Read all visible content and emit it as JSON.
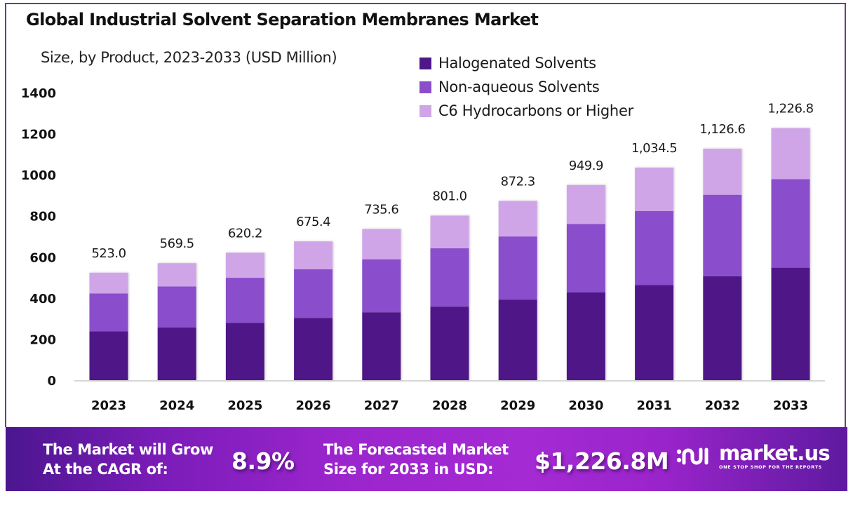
{
  "header": {
    "title": "Global Industrial Solvent Separation Membranes Market",
    "subtitle": "Size, by Product, 2023-2033 (USD Million)"
  },
  "legend": [
    {
      "label": "Halogenated Solvents",
      "color": "#4f1787"
    },
    {
      "label": "Non-aqueous Solvents",
      "color": "#8a4ecb"
    },
    {
      "label": "C6 Hydrocarbons or Higher",
      "color": "#d0a5e8"
    }
  ],
  "chart_data": {
    "type": "bar",
    "stacked": true,
    "title": "Global Industrial Solvent Separation Membranes Market",
    "subtitle": "Size, by Product, 2023-2033 (USD Million)",
    "xlabel": "",
    "ylabel": "",
    "ylim": [
      0,
      1400
    ],
    "yticks": [
      0,
      200,
      400,
      600,
      800,
      1000,
      1200,
      1400
    ],
    "grid": false,
    "legend_position": "top-right",
    "categories": [
      "2023",
      "2024",
      "2025",
      "2026",
      "2027",
      "2028",
      "2029",
      "2030",
      "2031",
      "2032",
      "2033"
    ],
    "series": [
      {
        "name": "Halogenated Solvents",
        "color": "#4f1787",
        "values": [
          237.2,
          256.4,
          279.1,
          303.2,
          330.5,
          357.9,
          392.2,
          427.1,
          463.0,
          505.8,
          547.6
        ]
      },
      {
        "name": "Non-aqueous Solvents",
        "color": "#8a4ecb",
        "values": [
          184.5,
          199.6,
          219.3,
          236.3,
          258.0,
          283.9,
          307.3,
          333.4,
          360.6,
          396.7,
          431.1
        ]
      },
      {
        "name": "C6 Hydrocarbons or Higher",
        "color": "#d0a5e8",
        "values": [
          101.3,
          113.5,
          121.8,
          135.9,
          147.1,
          159.2,
          172.8,
          189.4,
          210.9,
          224.1,
          248.1
        ]
      }
    ],
    "totals": [
      523.0,
      569.5,
      620.2,
      675.4,
      735.6,
      801.0,
      872.3,
      949.9,
      1034.5,
      1126.6,
      1226.8
    ],
    "total_labels": [
      "523.0",
      "569.5",
      "620.2",
      "675.4",
      "735.6",
      "801.0",
      "872.3",
      "949.9",
      "1,034.5",
      "1,126.6",
      "1,226.8"
    ]
  },
  "footer": {
    "cagr_text_line1": "The Market will Grow",
    "cagr_text_line2": "At the CAGR of:",
    "cagr_value": "8.9%",
    "forecast_text_line1": "The Forecasted Market",
    "forecast_text_line2": "Size for 2033 in USD:",
    "forecast_value": "$1,226.8M",
    "brand_name": "market.us",
    "brand_tagline": "ONE STOP SHOP FOR THE REPORTS"
  }
}
